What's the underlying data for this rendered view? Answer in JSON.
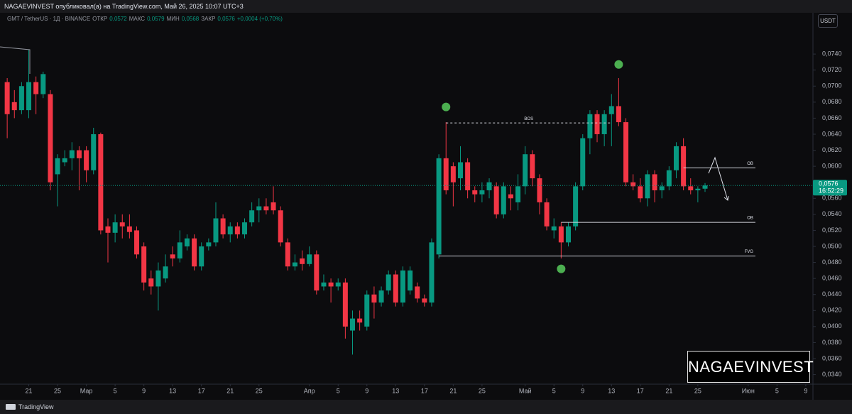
{
  "header": "NAGAEVINVEST опубликовал(а) на TradingView.com, Май 26, 2025 10:07 UTC+3",
  "footer": "TradingView",
  "chart_data": {
    "type": "candlestick",
    "legend": {
      "symbol": "GMT / TetherUS · 1Д · BINANCE",
      "open_label": "ОТКР",
      "open": "0,0572",
      "high_label": "МАКС",
      "high": "0,0579",
      "low_label": "МИН",
      "low": "0,0568",
      "close_label": "ЗАКР",
      "close": "0,0576",
      "change": "+0,0004 (+0,70%)"
    },
    "currency": "USDT",
    "watermark": "NAGAEVINVEST",
    "up_color": "#089981",
    "down_color": "#f23645",
    "grid": false,
    "x": [
      "2025-02-18",
      "2025-02-19",
      "2025-02-20",
      "2025-02-21",
      "2025-02-22",
      "2025-02-23",
      "2025-02-24",
      "2025-02-25",
      "2025-02-26",
      "2025-02-27",
      "2025-02-28",
      "2025-03-01",
      "2025-03-02",
      "2025-03-03",
      "2025-03-04",
      "2025-03-05",
      "2025-03-06",
      "2025-03-07",
      "2025-03-08",
      "2025-03-09",
      "2025-03-10",
      "2025-03-11",
      "2025-03-12",
      "2025-03-13",
      "2025-03-14",
      "2025-03-15",
      "2025-03-16",
      "2025-03-17",
      "2025-03-18",
      "2025-03-19",
      "2025-03-20",
      "2025-03-21",
      "2025-03-22",
      "2025-03-23",
      "2025-03-24",
      "2025-03-25",
      "2025-03-26",
      "2025-03-27",
      "2025-03-28",
      "2025-03-29",
      "2025-03-30",
      "2025-03-31",
      "2025-04-01",
      "2025-04-02",
      "2025-04-03",
      "2025-04-04",
      "2025-04-05",
      "2025-04-06",
      "2025-04-07",
      "2025-04-08",
      "2025-04-09",
      "2025-04-10",
      "2025-04-11",
      "2025-04-12",
      "2025-04-13",
      "2025-04-14",
      "2025-04-15",
      "2025-04-16",
      "2025-04-17",
      "2025-04-18",
      "2025-04-19",
      "2025-04-20",
      "2025-04-21",
      "2025-04-22",
      "2025-04-23",
      "2025-04-24",
      "2025-04-25",
      "2025-04-26",
      "2025-04-27",
      "2025-04-28",
      "2025-04-29",
      "2025-04-30",
      "2025-05-01",
      "2025-05-02",
      "2025-05-03",
      "2025-05-04",
      "2025-05-05",
      "2025-05-06",
      "2025-05-07",
      "2025-05-08",
      "2025-05-09",
      "2025-05-10",
      "2025-05-11",
      "2025-05-12",
      "2025-05-13",
      "2025-05-14",
      "2025-05-15",
      "2025-05-16",
      "2025-05-17",
      "2025-05-18",
      "2025-05-19",
      "2025-05-20",
      "2025-05-21",
      "2025-05-22",
      "2025-05-23",
      "2025-05-24",
      "2025-05-25",
      "2025-05-26"
    ],
    "open": [
      0.0705,
      0.068,
      0.067,
      0.067,
      0.0705,
      0.069,
      0.069,
      0.059,
      0.0605,
      0.061,
      0.062,
      0.062,
      0.0595,
      0.064,
      0.0525,
      0.0517,
      0.053,
      0.0525,
      0.052,
      0.05,
      0.046,
      0.045,
      0.046,
      0.049,
      0.0485,
      0.05,
      0.051,
      0.0475,
      0.05,
      0.0505,
      0.0535,
      0.0515,
      0.0525,
      0.0515,
      0.053,
      0.0545,
      0.055,
      0.0555,
      0.0545,
      0.0505,
      0.0475,
      0.0485,
      0.0478,
      0.049,
      0.045,
      0.0455,
      0.045,
      0.0455,
      0.0395,
      0.041,
      0.04,
      0.044,
      0.043,
      0.0445,
      0.0465,
      0.043,
      0.0445,
      0.045,
      0.0435,
      0.043,
      0.049,
      0.061,
      0.06,
      0.0585,
      0.0605,
      0.057,
      0.0565,
      0.057,
      0.0575,
      0.054,
      0.0565,
      0.0555,
      0.0575,
      0.0615,
      0.0585,
      0.0555,
      0.052,
      0.0525,
      0.0505,
      0.0525,
      0.0575,
      0.0635,
      0.0665,
      0.064,
      0.0665,
      0.0675,
      0.0655,
      0.058,
      0.0575,
      0.056,
      0.059,
      0.057,
      0.0575,
      0.0595,
      0.0625,
      0.0575,
      0.057,
      0.0572
    ],
    "high": [
      0.071,
      0.0695,
      0.0705,
      0.0745,
      0.0712,
      0.0718,
      0.0695,
      0.0615,
      0.062,
      0.063,
      0.0625,
      0.0625,
      0.0648,
      0.0642,
      0.0535,
      0.054,
      0.054,
      0.054,
      0.0525,
      0.0505,
      0.047,
      0.048,
      0.049,
      0.05,
      0.052,
      0.0515,
      0.0515,
      0.0505,
      0.051,
      0.0555,
      0.054,
      0.053,
      0.053,
      0.0535,
      0.0555,
      0.056,
      0.056,
      0.0575,
      0.055,
      0.051,
      0.049,
      0.0495,
      0.05,
      0.0495,
      0.0465,
      0.046,
      0.046,
      0.046,
      0.042,
      0.042,
      0.0445,
      0.045,
      0.045,
      0.047,
      0.047,
      0.0475,
      0.0475,
      0.0455,
      0.044,
      0.051,
      0.0615,
      0.0655,
      0.0605,
      0.0625,
      0.061,
      0.0575,
      0.058,
      0.0585,
      0.058,
      0.058,
      0.0575,
      0.059,
      0.0625,
      0.062,
      0.059,
      0.056,
      0.0535,
      0.053,
      0.053,
      0.058,
      0.064,
      0.067,
      0.067,
      0.067,
      0.069,
      0.071,
      0.066,
      0.059,
      0.0585,
      0.0595,
      0.0595,
      0.058,
      0.06,
      0.063,
      0.0635,
      0.0585,
      0.0575,
      0.0579
    ],
    "low": [
      0.0635,
      0.066,
      0.0665,
      0.066,
      0.0665,
      0.0685,
      0.057,
      0.055,
      0.06,
      0.0595,
      0.057,
      0.058,
      0.059,
      0.0515,
      0.048,
      0.0505,
      0.051,
      0.051,
      0.0485,
      0.0445,
      0.044,
      0.042,
      0.0455,
      0.0475,
      0.048,
      0.0495,
      0.047,
      0.047,
      0.0495,
      0.05,
      0.051,
      0.0505,
      0.051,
      0.051,
      0.0525,
      0.053,
      0.054,
      0.054,
      0.05,
      0.047,
      0.047,
      0.047,
      0.0475,
      0.044,
      0.0445,
      0.043,
      0.0445,
      0.0385,
      0.0365,
      0.0395,
      0.0395,
      0.041,
      0.0425,
      0.044,
      0.0425,
      0.0425,
      0.044,
      0.043,
      0.0425,
      0.0425,
      0.0485,
      0.0565,
      0.055,
      0.057,
      0.056,
      0.0555,
      0.0555,
      0.056,
      0.0535,
      0.0535,
      0.0545,
      0.0545,
      0.0565,
      0.0575,
      0.054,
      0.052,
      0.051,
      0.0485,
      0.05,
      0.052,
      0.057,
      0.0615,
      0.063,
      0.0625,
      0.0625,
      0.065,
      0.0575,
      0.057,
      0.0555,
      0.055,
      0.0555,
      0.056,
      0.057,
      0.0585,
      0.057,
      0.0565,
      0.0555,
      0.0568
    ],
    "close": [
      0.0665,
      0.067,
      0.07,
      0.0705,
      0.069,
      0.0715,
      0.058,
      0.061,
      0.061,
      0.062,
      0.061,
      0.0595,
      0.064,
      0.052,
      0.0517,
      0.053,
      0.0525,
      0.0518,
      0.049,
      0.0455,
      0.045,
      0.047,
      0.0475,
      0.0485,
      0.0505,
      0.051,
      0.0475,
      0.05,
      0.0505,
      0.0535,
      0.0515,
      0.0525,
      0.0515,
      0.053,
      0.0545,
      0.055,
      0.0545,
      0.0545,
      0.0505,
      0.0475,
      0.048,
      0.0478,
      0.049,
      0.0445,
      0.0455,
      0.045,
      0.0455,
      0.04,
      0.041,
      0.0405,
      0.044,
      0.043,
      0.0445,
      0.0465,
      0.043,
      0.047,
      0.047,
      0.0435,
      0.043,
      0.0505,
      0.061,
      0.057,
      0.058,
      0.0605,
      0.057,
      0.0565,
      0.057,
      0.058,
      0.054,
      0.0575,
      0.056,
      0.0575,
      0.0615,
      0.0585,
      0.0555,
      0.0525,
      0.0525,
      0.0505,
      0.0525,
      0.0575,
      0.0635,
      0.0665,
      0.064,
      0.0665,
      0.0675,
      0.0655,
      0.058,
      0.0575,
      0.056,
      0.059,
      0.057,
      0.0575,
      0.0595,
      0.0625,
      0.0575,
      0.057,
      0.0572,
      0.0576
    ],
    "xlim": [
      "2025-02-17",
      "2025-06-10"
    ],
    "xticks": [
      {
        "value": "2025-02-21",
        "label": "21"
      },
      {
        "value": "2025-02-25",
        "label": "25"
      },
      {
        "value": "2025-03-01",
        "label": "Мар"
      },
      {
        "value": "2025-03-05",
        "label": "5"
      },
      {
        "value": "2025-03-09",
        "label": "9"
      },
      {
        "value": "2025-03-13",
        "label": "13"
      },
      {
        "value": "2025-03-17",
        "label": "17"
      },
      {
        "value": "2025-03-21",
        "label": "21"
      },
      {
        "value": "2025-03-25",
        "label": "25"
      },
      {
        "value": "2025-04-01",
        "label": "Апр"
      },
      {
        "value": "2025-04-05",
        "label": "5"
      },
      {
        "value": "2025-04-09",
        "label": "9"
      },
      {
        "value": "2025-04-13",
        "label": "13"
      },
      {
        "value": "2025-04-17",
        "label": "17"
      },
      {
        "value": "2025-04-21",
        "label": "21"
      },
      {
        "value": "2025-04-25",
        "label": "25"
      },
      {
        "value": "2025-05-01",
        "label": "Май"
      },
      {
        "value": "2025-05-05",
        "label": "5"
      },
      {
        "value": "2025-05-09",
        "label": "9"
      },
      {
        "value": "2025-05-13",
        "label": "13"
      },
      {
        "value": "2025-05-17",
        "label": "17"
      },
      {
        "value": "2025-05-21",
        "label": "21"
      },
      {
        "value": "2025-05-25",
        "label": "25"
      },
      {
        "value": "2025-06-01",
        "label": "Июн"
      },
      {
        "value": "2025-06-05",
        "label": "5"
      },
      {
        "value": "2025-06-09",
        "label": "9"
      }
    ],
    "ylim": [
      0.0329,
      0.0772
    ],
    "yticks": [
      {
        "value": 0.034,
        "label": "0,0340"
      },
      {
        "value": 0.036,
        "label": "0,0360"
      },
      {
        "value": 0.038,
        "label": "0,0380"
      },
      {
        "value": 0.04,
        "label": "0,0400"
      },
      {
        "value": 0.042,
        "label": "0,0420"
      },
      {
        "value": 0.044,
        "label": "0,0440"
      },
      {
        "value": 0.046,
        "label": "0,0460"
      },
      {
        "value": 0.048,
        "label": "0,0480"
      },
      {
        "value": 0.05,
        "label": "0,0500"
      },
      {
        "value": 0.052,
        "label": "0,0520"
      },
      {
        "value": 0.054,
        "label": "0,0540"
      },
      {
        "value": 0.056,
        "label": "0,0560"
      },
      {
        "value": 0.06,
        "label": "0,0600"
      },
      {
        "value": 0.062,
        "label": "0,0620"
      },
      {
        "value": 0.064,
        "label": "0,0640"
      },
      {
        "value": 0.066,
        "label": "0,0660"
      },
      {
        "value": 0.068,
        "label": "0,0680"
      },
      {
        "value": 0.07,
        "label": "0,0700"
      },
      {
        "value": 0.072,
        "label": "0,0720"
      },
      {
        "value": 0.074,
        "label": "0,0740"
      }
    ],
    "price_label": {
      "value": 0.0576,
      "label": "0,0576"
    },
    "countdown": "16:52:29",
    "levels": [
      {
        "label": "BOS",
        "value": 0.0654,
        "from": "2025-04-20",
        "to": "2025-05-13",
        "dashed": true
      },
      {
        "label": "OB",
        "value": 0.0598,
        "from": "2025-05-23",
        "to": "2025-06-02",
        "dashed": false
      },
      {
        "label": "OB",
        "value": 0.053,
        "from": "2025-05-06",
        "to": "2025-06-02",
        "dashed": false
      },
      {
        "label": "FVG",
        "value": 0.0488,
        "from": "2025-04-19",
        "to": "2025-06-02",
        "dashed": false
      }
    ],
    "marker_color": "#4caf50",
    "markers": [
      {
        "x": "2025-04-20",
        "y": 0.0674
      },
      {
        "x": "2025-05-14",
        "y": 0.0727
      },
      {
        "x": "2025-05-06",
        "y": 0.0472
      }
    ]
  }
}
